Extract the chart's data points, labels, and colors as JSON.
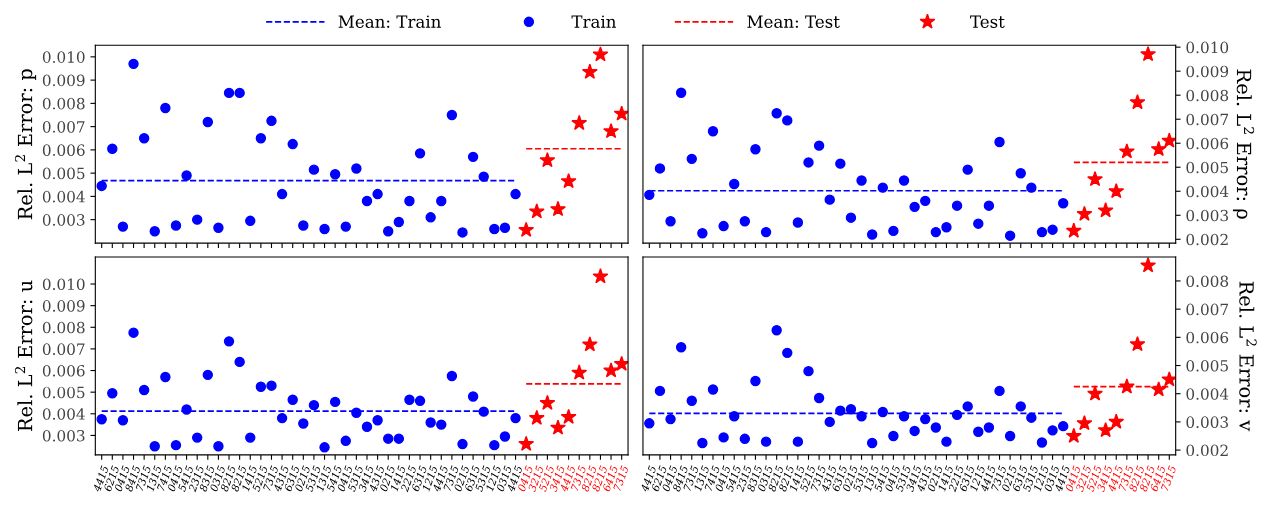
{
  "chart_data": [
    {
      "type": "scatter",
      "ylabel": "Rel. L$^{2}$ Error: p",
      "tick_labels": "y",
      "legend": "top",
      "ylim": [
        0.00199,
        0.0105
      ],
      "yticks": [
        {
          "value": 0.003,
          "label": "0.003"
        },
        {
          "value": 0.004,
          "label": "0.004"
        },
        {
          "value": 0.005,
          "label": "0.005"
        },
        {
          "value": 0.006,
          "label": "0.006"
        },
        {
          "value": 0.007,
          "label": "0.007"
        },
        {
          "value": 0.008,
          "label": "0.008"
        },
        {
          "value": 0.009,
          "label": "0.009"
        },
        {
          "value": 0.01,
          "label": "0.010"
        }
      ],
      "categories": [
        "4415",
        "6215",
        "0415",
        "8415",
        "7315",
        "1315",
        "7415",
        "0415",
        "5415",
        "2315",
        "8315",
        "0315",
        "8215",
        "8215",
        "1415",
        "5215",
        "7315",
        "4315",
        "6315",
        "0215",
        "5315",
        "1315",
        "5415",
        "0415",
        "5315",
        "3415",
        "4315",
        "0215",
        "1415",
        "2215",
        "6315",
        "1215",
        "4415",
        "7315",
        "0215",
        "6315",
        "5315",
        "1215",
        "0315",
        "4415",
        "0415",
        "3215",
        "5215",
        "3415",
        "4415",
        "7315",
        "8215",
        "8215",
        "6415",
        "7315"
      ],
      "series": [
        {
          "name": "Mean: Train",
          "type": "line",
          "line_style": "dashed",
          "color": "#0000ff",
          "values": [
            0.00468,
            0.00468,
            0.00468,
            0.00468,
            0.00468,
            0.00468,
            0.00468,
            0.00468,
            0.00468,
            0.00468,
            0.00468,
            0.00468,
            0.00468,
            0.00468,
            0.00468,
            0.00468,
            0.00468,
            0.00468,
            0.00468,
            0.00468,
            0.00468,
            0.00468,
            0.00468,
            0.00468,
            0.00468,
            0.00468,
            0.00468,
            0.00468,
            0.00468,
            0.00468,
            0.00468,
            0.00468,
            0.00468,
            0.00468,
            0.00468,
            0.00468,
            0.00468,
            0.00468,
            0.00468,
            0.00468,
            null,
            null,
            null,
            null,
            null,
            null,
            null,
            null,
            null,
            null
          ]
        },
        {
          "name": "Train",
          "marker": "circle",
          "color": "#0000ff",
          "values": [
            0.00445,
            0.00605,
            0.0027,
            0.0097,
            0.0065,
            0.0025,
            0.0078,
            0.00275,
            0.0049,
            0.003,
            0.0072,
            0.00265,
            0.00845,
            0.00845,
            0.00295,
            0.0065,
            0.00725,
            0.0041,
            0.00625,
            0.00275,
            0.00515,
            0.0026,
            0.00495,
            0.0027,
            0.0052,
            0.0038,
            0.0041,
            0.0025,
            0.0029,
            0.0038,
            0.00585,
            0.0031,
            0.0038,
            0.0075,
            0.00245,
            0.0057,
            0.00485,
            0.0026,
            0.00265,
            0.0041,
            null,
            null,
            null,
            null,
            null,
            null,
            null,
            null,
            null,
            null
          ]
        },
        {
          "name": "Mean: Test",
          "type": "line",
          "line_style": "dashed",
          "color": "#ff0000",
          "values": [
            null,
            null,
            null,
            null,
            null,
            null,
            null,
            null,
            null,
            null,
            null,
            null,
            null,
            null,
            null,
            null,
            null,
            null,
            null,
            null,
            null,
            null,
            null,
            null,
            null,
            null,
            null,
            null,
            null,
            null,
            null,
            null,
            null,
            null,
            null,
            null,
            null,
            null,
            null,
            null,
            0.00605,
            0.00605,
            0.00605,
            0.00605,
            0.00605,
            0.00605,
            0.00605,
            0.00605,
            0.00605,
            0.00605
          ]
        },
        {
          "name": "Test",
          "marker": "star",
          "color": "#ff0000",
          "values": [
            null,
            null,
            null,
            null,
            null,
            null,
            null,
            null,
            null,
            null,
            null,
            null,
            null,
            null,
            null,
            null,
            null,
            null,
            null,
            null,
            null,
            null,
            null,
            null,
            null,
            null,
            null,
            null,
            null,
            null,
            null,
            null,
            null,
            null,
            null,
            null,
            null,
            null,
            null,
            null,
            0.00255,
            0.00335,
            0.00555,
            0.00345,
            0.00465,
            0.00715,
            0.00935,
            0.0101,
            0.0068,
            0.00755
          ]
        }
      ]
    },
    {
      "type": "scatter",
      "ylabel": "Rel. L$^{2}$ Error: ρ",
      "tick_labels": "y",
      "ylim": [
        0.00184,
        0.01008
      ],
      "yticks": [
        {
          "value": 0.002,
          "label": "0.002"
        },
        {
          "value": 0.003,
          "label": "0.003"
        },
        {
          "value": 0.004,
          "label": "0.004"
        },
        {
          "value": 0.005,
          "label": "0.005"
        },
        {
          "value": 0.006,
          "label": "0.006"
        },
        {
          "value": 0.007,
          "label": "0.007"
        },
        {
          "value": 0.008,
          "label": "0.008"
        },
        {
          "value": 0.009,
          "label": "0.009"
        },
        {
          "value": 0.01,
          "label": "0.010"
        }
      ],
      "categories": [
        "4415",
        "6215",
        "0415",
        "8415",
        "7315",
        "1315",
        "7415",
        "0415",
        "5415",
        "2315",
        "8315",
        "0315",
        "8215",
        "8215",
        "1415",
        "5215",
        "7315",
        "4315",
        "6315",
        "0215",
        "5315",
        "1315",
        "5415",
        "0415",
        "5315",
        "3415",
        "4315",
        "0215",
        "1415",
        "2215",
        "6315",
        "1215",
        "4415",
        "7315",
        "0215",
        "6315",
        "5315",
        "1215",
        "0315",
        "4415",
        "0415",
        "3215",
        "5215",
        "3415",
        "4415",
        "7315",
        "8215",
        "8215",
        "6415",
        "7315"
      ],
      "series": [
        {
          "type": "line",
          "line_style": "dashed",
          "color": "#0000ff",
          "values": [
            0.00402,
            0.00402,
            0.00402,
            0.00402,
            0.00402,
            0.00402,
            0.00402,
            0.00402,
            0.00402,
            0.00402,
            0.00402,
            0.00402,
            0.00402,
            0.00402,
            0.00402,
            0.00402,
            0.00402,
            0.00402,
            0.00402,
            0.00402,
            0.00402,
            0.00402,
            0.00402,
            0.00402,
            0.00402,
            0.00402,
            0.00402,
            0.00402,
            0.00402,
            0.00402,
            0.00402,
            0.00402,
            0.00402,
            0.00402,
            0.00402,
            0.00402,
            0.00402,
            0.00402,
            0.00402,
            0.00402,
            null,
            null,
            null,
            null,
            null,
            null,
            null,
            null,
            null,
            null
          ]
        },
        {
          "marker": "circle",
          "color": "#0000ff",
          "values": [
            0.00385,
            0.00495,
            0.00275,
            0.0081,
            0.00535,
            0.00225,
            0.0065,
            0.00255,
            0.0043,
            0.00275,
            0.00575,
            0.0023,
            0.00725,
            0.00695,
            0.0027,
            0.0052,
            0.0059,
            0.00365,
            0.00515,
            0.0029,
            0.00445,
            0.0022,
            0.00415,
            0.00235,
            0.00445,
            0.00335,
            0.0036,
            0.0023,
            0.0025,
            0.0034,
            0.0049,
            0.00265,
            0.0034,
            0.00605,
            0.00215,
            0.00475,
            0.00415,
            0.0023,
            0.0024,
            0.0035,
            null,
            null,
            null,
            null,
            null,
            null,
            null,
            null,
            null,
            null
          ]
        },
        {
          "type": "line",
          "line_style": "dashed",
          "color": "#ff0000",
          "values": [
            null,
            null,
            null,
            null,
            null,
            null,
            null,
            null,
            null,
            null,
            null,
            null,
            null,
            null,
            null,
            null,
            null,
            null,
            null,
            null,
            null,
            null,
            null,
            null,
            null,
            null,
            null,
            null,
            null,
            null,
            null,
            null,
            null,
            null,
            null,
            null,
            null,
            null,
            null,
            null,
            0.0052,
            0.0052,
            0.0052,
            0.0052,
            0.0052,
            0.0052,
            0.0052,
            0.0052,
            0.0052,
            0.0052
          ]
        },
        {
          "marker": "star",
          "color": "#ff0000",
          "values": [
            null,
            null,
            null,
            null,
            null,
            null,
            null,
            null,
            null,
            null,
            null,
            null,
            null,
            null,
            null,
            null,
            null,
            null,
            null,
            null,
            null,
            null,
            null,
            null,
            null,
            null,
            null,
            null,
            null,
            null,
            null,
            null,
            null,
            null,
            null,
            null,
            null,
            null,
            null,
            null,
            0.00235,
            0.00305,
            0.0045,
            0.0032,
            0.004,
            0.00565,
            0.0077,
            0.0097,
            0.00575,
            0.0061
          ]
        }
      ]
    },
    {
      "type": "scatter",
      "ylabel": "Rel. L$^{2}$ Error: u",
      "ylim": [
        0.0021,
        0.01125
      ],
      "yticks": [
        {
          "value": 0.003,
          "label": "0.003"
        },
        {
          "value": 0.004,
          "label": "0.004"
        },
        {
          "value": 0.005,
          "label": "0.005"
        },
        {
          "value": 0.006,
          "label": "0.006"
        },
        {
          "value": 0.007,
          "label": "0.007"
        },
        {
          "value": 0.008,
          "label": "0.008"
        },
        {
          "value": 0.009,
          "label": "0.009"
        },
        {
          "value": 0.01,
          "label": "0.010"
        }
      ],
      "categories": [
        "4415",
        "6215",
        "0415",
        "8415",
        "7315",
        "1315",
        "7415",
        "0415",
        "5415",
        "2315",
        "8315",
        "0315",
        "8215",
        "8215",
        "1415",
        "5215",
        "7315",
        "4315",
        "6315",
        "0215",
        "5315",
        "1315",
        "5415",
        "0415",
        "5315",
        "3415",
        "4315",
        "0215",
        "1415",
        "2215",
        "6315",
        "1215",
        "4415",
        "7315",
        "0215",
        "6315",
        "5315",
        "1215",
        "0315",
        "4415",
        "0415",
        "3215",
        "5215",
        "3415",
        "4415",
        "7315",
        "8215",
        "8215",
        "6415",
        "7315"
      ],
      "series": [
        {
          "type": "line",
          "line_style": "dashed",
          "color": "#0000ff",
          "values": [
            0.00412,
            0.00412,
            0.00412,
            0.00412,
            0.00412,
            0.00412,
            0.00412,
            0.00412,
            0.00412,
            0.00412,
            0.00412,
            0.00412,
            0.00412,
            0.00412,
            0.00412,
            0.00412,
            0.00412,
            0.00412,
            0.00412,
            0.00412,
            0.00412,
            0.00412,
            0.00412,
            0.00412,
            0.00412,
            0.00412,
            0.00412,
            0.00412,
            0.00412,
            0.00412,
            0.00412,
            0.00412,
            0.00412,
            0.00412,
            0.00412,
            0.00412,
            0.00412,
            0.00412,
            0.00412,
            0.00412,
            null,
            null,
            null,
            null,
            null,
            null,
            null,
            null,
            null,
            null
          ]
        },
        {
          "marker": "circle",
          "color": "#0000ff",
          "values": [
            0.00375,
            0.00495,
            0.0037,
            0.00775,
            0.0051,
            0.0025,
            0.0057,
            0.00255,
            0.0042,
            0.0029,
            0.0058,
            0.0025,
            0.00735,
            0.0064,
            0.0029,
            0.00525,
            0.0053,
            0.0038,
            0.00465,
            0.00355,
            0.0044,
            0.00245,
            0.00455,
            0.00275,
            0.00405,
            0.0034,
            0.0037,
            0.00285,
            0.00285,
            0.00465,
            0.0046,
            0.0036,
            0.0035,
            0.00575,
            0.0026,
            0.0048,
            0.0041,
            0.00255,
            0.00295,
            0.0038,
            null,
            null,
            null,
            null,
            null,
            null,
            null,
            null,
            null,
            null
          ]
        },
        {
          "type": "line",
          "line_style": "dashed",
          "color": "#ff0000",
          "values": [
            null,
            null,
            null,
            null,
            null,
            null,
            null,
            null,
            null,
            null,
            null,
            null,
            null,
            null,
            null,
            null,
            null,
            null,
            null,
            null,
            null,
            null,
            null,
            null,
            null,
            null,
            null,
            null,
            null,
            null,
            null,
            null,
            null,
            null,
            null,
            null,
            null,
            null,
            null,
            null,
            0.00538,
            0.00538,
            0.00538,
            0.00538,
            0.00538,
            0.00538,
            0.00538,
            0.00538,
            0.00538,
            0.00538
          ]
        },
        {
          "marker": "star",
          "color": "#ff0000",
          "values": [
            null,
            null,
            null,
            null,
            null,
            null,
            null,
            null,
            null,
            null,
            null,
            null,
            null,
            null,
            null,
            null,
            null,
            null,
            null,
            null,
            null,
            null,
            null,
            null,
            null,
            null,
            null,
            null,
            null,
            null,
            null,
            null,
            null,
            null,
            null,
            null,
            null,
            null,
            null,
            null,
            0.0026,
            0.0038,
            0.0045,
            0.00335,
            0.00385,
            0.0059,
            0.0072,
            0.01035,
            0.006,
            0.0063
          ]
        }
      ]
    },
    {
      "type": "scatter",
      "ylabel": "Rel. L$^{2}$ Error: v",
      "ylim": [
        0.00183,
        0.00885
      ],
      "yticks": [
        {
          "value": 0.002,
          "label": "0.002"
        },
        {
          "value": 0.003,
          "label": "0.003"
        },
        {
          "value": 0.004,
          "label": "0.004"
        },
        {
          "value": 0.005,
          "label": "0.005"
        },
        {
          "value": 0.006,
          "label": "0.006"
        },
        {
          "value": 0.007,
          "label": "0.007"
        },
        {
          "value": 0.008,
          "label": "0.008"
        }
      ],
      "categories": [
        "4415",
        "6215",
        "0415",
        "8415",
        "7315",
        "1315",
        "7415",
        "0415",
        "5415",
        "2315",
        "8315",
        "0315",
        "8215",
        "8215",
        "1415",
        "5215",
        "7315",
        "4315",
        "6315",
        "0215",
        "5315",
        "1315",
        "5415",
        "0415",
        "5315",
        "3415",
        "4315",
        "0215",
        "1415",
        "2215",
        "6315",
        "1215",
        "4415",
        "7315",
        "0215",
        "6315",
        "5315",
        "1215",
        "0315",
        "4415",
        "0415",
        "3215",
        "5215",
        "3415",
        "4415",
        "7315",
        "8215",
        "8215",
        "6415",
        "7315"
      ],
      "series": [
        {
          "type": "line",
          "line_style": "dashed",
          "color": "#0000ff",
          "values": [
            0.0033,
            0.0033,
            0.0033,
            0.0033,
            0.0033,
            0.0033,
            0.0033,
            0.0033,
            0.0033,
            0.0033,
            0.0033,
            0.0033,
            0.0033,
            0.0033,
            0.0033,
            0.0033,
            0.0033,
            0.0033,
            0.0033,
            0.0033,
            0.0033,
            0.0033,
            0.0033,
            0.0033,
            0.0033,
            0.0033,
            0.0033,
            0.0033,
            0.0033,
            0.0033,
            0.0033,
            0.0033,
            0.0033,
            0.0033,
            0.0033,
            0.0033,
            0.0033,
            0.0033,
            0.0033,
            0.0033,
            null,
            null,
            null,
            null,
            null,
            null,
            null,
            null,
            null,
            null
          ]
        },
        {
          "marker": "circle",
          "color": "#0000ff",
          "values": [
            0.00295,
            0.0041,
            0.0031,
            0.00565,
            0.00375,
            0.00225,
            0.00415,
            0.00245,
            0.0032,
            0.0024,
            0.00445,
            0.0023,
            0.00625,
            0.00545,
            0.0023,
            0.0048,
            0.00385,
            0.003,
            0.0034,
            0.00345,
            0.0032,
            0.00225,
            0.00335,
            0.0025,
            0.0032,
            0.00268,
            0.0031,
            0.0028,
            0.0023,
            0.00325,
            0.00355,
            0.00265,
            0.0028,
            0.0041,
            0.0025,
            0.00355,
            0.00315,
            0.00227,
            0.0027,
            0.00285,
            null,
            null,
            null,
            null,
            null,
            null,
            null,
            null,
            null,
            null
          ]
        },
        {
          "type": "line",
          "line_style": "dashed",
          "color": "#ff0000",
          "values": [
            null,
            null,
            null,
            null,
            null,
            null,
            null,
            null,
            null,
            null,
            null,
            null,
            null,
            null,
            null,
            null,
            null,
            null,
            null,
            null,
            null,
            null,
            null,
            null,
            null,
            null,
            null,
            null,
            null,
            null,
            null,
            null,
            null,
            null,
            null,
            null,
            null,
            null,
            null,
            null,
            0.00425,
            0.00425,
            0.00425,
            0.00425,
            0.00425,
            0.00425,
            0.00425,
            0.00425,
            0.00425,
            0.00425
          ]
        },
        {
          "marker": "star",
          "color": "#ff0000",
          "values": [
            null,
            null,
            null,
            null,
            null,
            null,
            null,
            null,
            null,
            null,
            null,
            null,
            null,
            null,
            null,
            null,
            null,
            null,
            null,
            null,
            null,
            null,
            null,
            null,
            null,
            null,
            null,
            null,
            null,
            null,
            null,
            null,
            null,
            null,
            null,
            null,
            null,
            null,
            null,
            null,
            0.0025,
            0.00295,
            0.004,
            0.0027,
            0.003,
            0.00425,
            0.00575,
            0.00855,
            0.00415,
            0.0045
          ]
        }
      ]
    }
  ]
}
